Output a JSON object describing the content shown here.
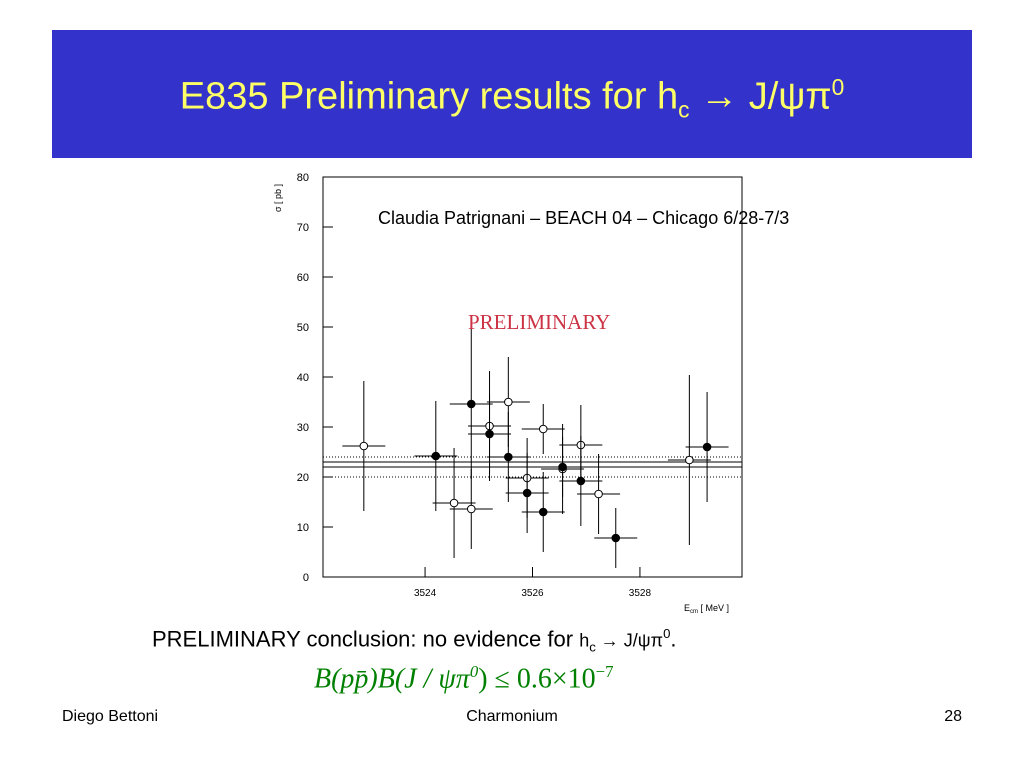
{
  "header": {
    "title": {
      "text": "E835 Preliminary results for h",
      "sub": "c",
      "rest": " → J/ψπ",
      "sup": "0"
    }
  },
  "chart_data": {
    "type": "scatter",
    "ylabel": "σ [ pb ]",
    "xlabel": {
      "text": "E",
      "sub": "cm",
      "rest": " [ MeV ]"
    },
    "annotations": [
      "Claudia Patrignani – BEACH 04 – Chicago 6/28-7/3",
      "PRELIMINARY"
    ],
    "xlim": [
      3522.1,
      3529.9
    ],
    "ylim": [
      0,
      80
    ],
    "xticks": [
      3524,
      3526,
      3528
    ],
    "yticks": [
      0,
      10,
      20,
      30,
      40,
      50,
      60,
      70,
      80
    ],
    "series": [
      {
        "marker": "open",
        "color": "#000000",
        "xerr": 0.4,
        "x": [
          3522.86,
          3524.54,
          3524.86,
          3525.2,
          3525.55,
          3525.9,
          3526.2,
          3526.56,
          3526.9,
          3527.23,
          3528.92
        ],
        "values": [
          26.2,
          14.8,
          13.6,
          30.2,
          35,
          19.8,
          29.6,
          21.6,
          26.4,
          16.6,
          23.4
        ],
        "errors": [
          13,
          11,
          8,
          11,
          9,
          8,
          5,
          9,
          8,
          8,
          17
        ]
      },
      {
        "marker": "filled",
        "color": "#000000",
        "xerr": 0.4,
        "x": [
          3524.2,
          3524.86,
          3525.2,
          3525.55,
          3525.9,
          3526.2,
          3526.56,
          3526.9,
          3527.55,
          3529.25
        ],
        "values": [
          24.2,
          34.6,
          28.6,
          24,
          16.8,
          13,
          22,
          19.2,
          7.8,
          26
        ],
        "errors": [
          11,
          15,
          8,
          9,
          8,
          8,
          6,
          9,
          6,
          11
        ]
      }
    ],
    "reference_lines": [
      {
        "value": 24,
        "style": "dotted"
      },
      {
        "value": 23,
        "style": "solid"
      },
      {
        "value": 22,
        "style": "solid"
      },
      {
        "value": 20,
        "style": "dotted"
      }
    ]
  },
  "conclusion": {
    "text": "PRELIMINARY conclusion: no evidence for ",
    "h": "h",
    "sub": "c",
    "rest": " → J/ψπ",
    "sup": "0",
    "end": "."
  },
  "formula": {
    "lhs": "B(pp̄)B(J / ψπ",
    "sup0": "0",
    "mid": ") ≤ 0.6×10",
    "exp": "−7"
  },
  "footer": {
    "left": "Diego Bettoni",
    "center": "Charmonium",
    "right": "28"
  }
}
